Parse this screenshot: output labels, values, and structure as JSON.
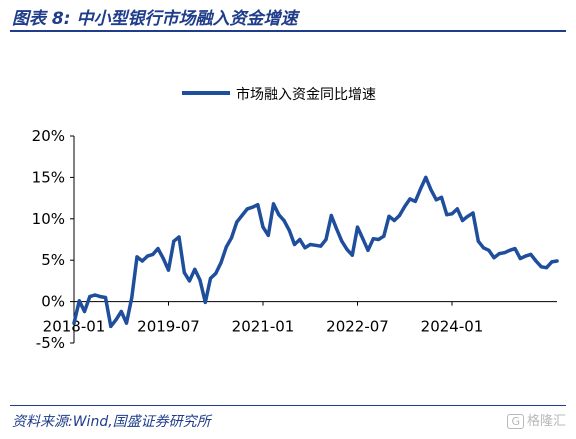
{
  "figure_title": "图表 8:  中小型银行市场融入资金增速",
  "source_text": "资料来源:Wind,国盛证券研究所",
  "watermark": {
    "icon": "G",
    "text": "格隆汇"
  },
  "colors": {
    "series": "#1f4e9c",
    "title": "#1f3d8a",
    "axis": "#000000"
  },
  "chart_data": {
    "type": "line",
    "title": "",
    "xlabel": "",
    "ylabel": "",
    "legend": {
      "placement": "top-center",
      "entries": [
        "市场融入资金同比增速"
      ]
    },
    "grid": false,
    "ylim": [
      -5,
      20
    ],
    "y_ticks": [
      -5,
      0,
      5,
      10,
      15,
      20
    ],
    "y_tick_labels": [
      "-5%",
      "0%",
      "5%",
      "10%",
      "15%",
      "20%"
    ],
    "x_range": [
      "2018-01",
      "2025-09"
    ],
    "x_ticks": [
      "2018-01",
      "2019-07",
      "2021-01",
      "2022-07",
      "2024-01"
    ],
    "x_tick_labels": [
      "2018-01",
      "2019-07",
      "2021-01",
      "2022-07",
      "2024-01"
    ],
    "series": [
      {
        "name": "市场融入资金同比增速",
        "color": "#1f4e9c",
        "x": [
          "2018-01",
          "2018-02",
          "2018-03",
          "2018-04",
          "2018-05",
          "2018-06",
          "2018-07",
          "2018-08",
          "2018-09",
          "2018-10",
          "2018-11",
          "2018-12",
          "2019-01",
          "2019-02",
          "2019-03",
          "2019-04",
          "2019-05",
          "2019-06",
          "2019-07",
          "2019-08",
          "2019-09",
          "2019-10",
          "2019-11",
          "2019-12",
          "2020-01",
          "2020-02",
          "2020-03",
          "2020-04",
          "2020-05",
          "2020-06",
          "2020-07",
          "2020-08",
          "2020-09",
          "2020-10",
          "2020-11",
          "2020-12",
          "2021-01",
          "2021-02",
          "2021-03",
          "2021-04",
          "2021-05",
          "2021-06",
          "2021-07",
          "2021-08",
          "2021-09",
          "2021-10",
          "2021-11",
          "2021-12",
          "2022-01",
          "2022-02",
          "2022-03",
          "2022-04",
          "2022-05",
          "2022-06",
          "2022-07",
          "2022-08",
          "2022-09",
          "2022-10",
          "2022-11",
          "2022-12",
          "2023-01",
          "2023-02",
          "2023-03",
          "2023-04",
          "2023-05",
          "2023-06",
          "2023-07",
          "2023-08",
          "2023-09",
          "2023-10",
          "2023-11",
          "2023-12",
          "2024-01",
          "2024-02",
          "2024-03",
          "2024-04",
          "2024-05",
          "2024-06",
          "2024-07",
          "2024-08",
          "2024-09",
          "2024-10",
          "2024-11",
          "2024-12",
          "2025-01",
          "2025-02",
          "2025-03",
          "2025-04",
          "2025-05",
          "2025-06",
          "2025-07",
          "2025-08",
          "2025-09"
        ],
        "y": [
          -2.6,
          0.1,
          -1.2,
          0.6,
          0.8,
          0.6,
          0.5,
          -3.0,
          -2.2,
          -1.2,
          -2.6,
          0.5,
          5.4,
          4.9,
          5.5,
          5.7,
          6.4,
          5.2,
          3.8,
          7.3,
          7.8,
          3.5,
          2.5,
          3.9,
          2.6,
          -0.1,
          2.8,
          3.4,
          4.7,
          6.6,
          7.7,
          9.6,
          10.4,
          11.2,
          11.4,
          11.7,
          9.0,
          8.0,
          11.8,
          10.5,
          9.8,
          8.6,
          6.9,
          7.5,
          6.5,
          6.9,
          6.8,
          6.7,
          7.5,
          10.4,
          8.8,
          7.3,
          6.3,
          5.6,
          9.0,
          7.6,
          6.2,
          7.6,
          7.5,
          7.9,
          10.3,
          9.8,
          10.4,
          11.5,
          12.4,
          12.1,
          13.6,
          15.0,
          13.5,
          12.3,
          12.6,
          10.5,
          10.6,
          11.2,
          9.8,
          10.3,
          10.7,
          7.3,
          6.5,
          6.2,
          5.3,
          5.8,
          5.9,
          6.2,
          6.4,
          5.2,
          5.5,
          5.7,
          4.9,
          4.2,
          4.1,
          4.8,
          4.9
        ]
      }
    ]
  }
}
